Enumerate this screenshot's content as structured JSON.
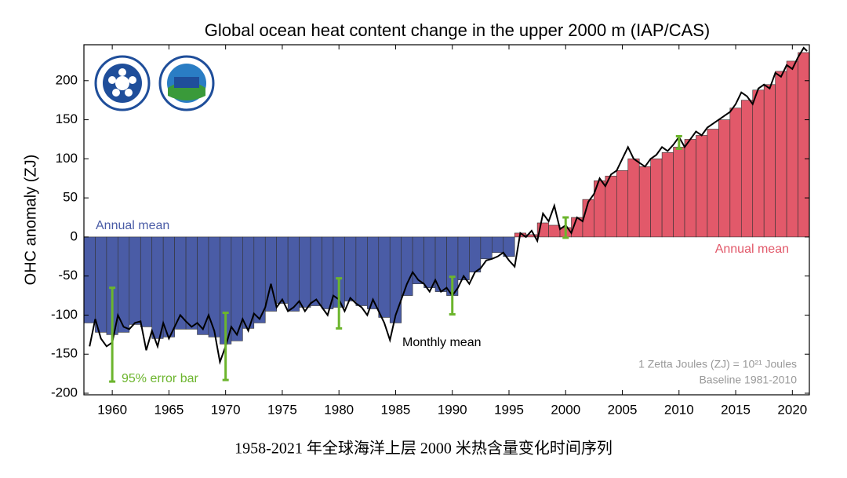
{
  "chart_data": {
    "type": "bar",
    "title": "Global ocean heat content change in the upper 2000 m (IAP/CAS)",
    "ylabel": "OHC anomaly (ZJ)",
    "x": [
      1958,
      1959,
      1960,
      1961,
      1962,
      1963,
      1964,
      1965,
      1966,
      1967,
      1968,
      1969,
      1970,
      1971,
      1972,
      1973,
      1974,
      1975,
      1976,
      1977,
      1978,
      1979,
      1980,
      1981,
      1982,
      1983,
      1984,
      1985,
      1986,
      1987,
      1988,
      1989,
      1990,
      1991,
      1992,
      1993,
      1994,
      1995,
      1996,
      1997,
      1998,
      1999,
      2000,
      2001,
      2002,
      2003,
      2004,
      2005,
      2006,
      2007,
      2008,
      2009,
      2010,
      2011,
      2012,
      2013,
      2014,
      2015,
      2016,
      2017,
      2018,
      2019,
      2020,
      2021
    ],
    "values": [
      -110,
      -122,
      -125,
      -122,
      -112,
      -115,
      -130,
      -128,
      -118,
      -118,
      -125,
      -128,
      -137,
      -133,
      -117,
      -110,
      -95,
      -85,
      -95,
      -90,
      -88,
      -92,
      -90,
      -82,
      -88,
      -92,
      -103,
      -110,
      -75,
      -60,
      -65,
      -70,
      -75,
      -55,
      -45,
      -28,
      -20,
      -25,
      5,
      3,
      18,
      15,
      12,
      25,
      48,
      72,
      78,
      85,
      100,
      90,
      100,
      108,
      115,
      125,
      130,
      138,
      150,
      165,
      175,
      188,
      195,
      212,
      225,
      236
    ],
    "negative_color": "#4a5ca6",
    "positive_color": "#e2596a",
    "line": {
      "name": "Monthly mean",
      "color": "#000000",
      "x": [
        1958.0,
        1958.5,
        1959.0,
        1959.5,
        1960.0,
        1960.5,
        1961.0,
        1961.5,
        1962.0,
        1962.5,
        1963.0,
        1963.5,
        1964.0,
        1964.5,
        1965.0,
        1965.5,
        1966.0,
        1966.5,
        1967.0,
        1967.5,
        1968.0,
        1968.5,
        1969.0,
        1969.5,
        1970.0,
        1970.5,
        1971.0,
        1971.5,
        1972.0,
        1972.5,
        1973.0,
        1973.5,
        1974.0,
        1974.5,
        1975.0,
        1975.5,
        1976.0,
        1976.5,
        1977.0,
        1977.5,
        1978.0,
        1978.5,
        1979.0,
        1979.5,
        1980.0,
        1980.5,
        1981.0,
        1981.5,
        1982.0,
        1982.5,
        1983.0,
        1983.5,
        1984.0,
        1984.5,
        1985.0,
        1985.5,
        1986.0,
        1986.5,
        1987.0,
        1987.5,
        1988.0,
        1988.5,
        1989.0,
        1989.5,
        1990.0,
        1990.5,
        1991.0,
        1991.5,
        1992.0,
        1992.5,
        1993.0,
        1993.5,
        1994.0,
        1994.5,
        1995.0,
        1995.5,
        1996.0,
        1996.5,
        1997.0,
        1997.5,
        1998.0,
        1998.5,
        1999.0,
        1999.5,
        2000.0,
        2000.5,
        2001.0,
        2001.5,
        2002.0,
        2002.5,
        2003.0,
        2003.5,
        2004.0,
        2004.5,
        2005.0,
        2005.5,
        2006.0,
        2006.5,
        2007.0,
        2007.5,
        2008.0,
        2008.5,
        2009.0,
        2009.5,
        2010.0,
        2010.5,
        2011.0,
        2011.5,
        2012.0,
        2012.5,
        2013.0,
        2013.5,
        2014.0,
        2014.5,
        2015.0,
        2015.5,
        2016.0,
        2016.5,
        2017.0,
        2017.5,
        2018.0,
        2018.5,
        2019.0,
        2019.5,
        2020.0,
        2020.5,
        2021.0,
        2021.3
      ],
      "values": [
        -140,
        -105,
        -130,
        -140,
        -135,
        -100,
        -115,
        -118,
        -110,
        -108,
        -145,
        -120,
        -140,
        -110,
        -130,
        -115,
        -100,
        -108,
        -115,
        -110,
        -118,
        -100,
        -120,
        -160,
        -140,
        -115,
        -125,
        -105,
        -120,
        -98,
        -105,
        -90,
        -60,
        -90,
        -80,
        -95,
        -90,
        -82,
        -95,
        -85,
        -80,
        -90,
        -100,
        -75,
        -80,
        -95,
        -78,
        -85,
        -90,
        -100,
        -80,
        -95,
        -110,
        -132,
        -100,
        -80,
        -60,
        -45,
        -55,
        -60,
        -70,
        -55,
        -70,
        -65,
        -75,
        -65,
        -50,
        -60,
        -45,
        -40,
        -30,
        -28,
        -25,
        -20,
        -30,
        -38,
        5,
        0,
        8,
        -5,
        30,
        20,
        40,
        10,
        15,
        5,
        25,
        20,
        45,
        55,
        75,
        65,
        80,
        85,
        100,
        115,
        100,
        95,
        90,
        100,
        105,
        115,
        110,
        118,
        128,
        115,
        125,
        135,
        130,
        140,
        145,
        150,
        155,
        160,
        170,
        185,
        180,
        170,
        190,
        195,
        190,
        210,
        205,
        220,
        215,
        230,
        242,
        238
      ]
    },
    "error_bars": {
      "color": "#6cb52d",
      "x": [
        1960,
        1970,
        1980,
        1990,
        2000,
        2010
      ],
      "values": [
        -125,
        -140,
        -85,
        -75,
        12,
        121
      ],
      "errors": [
        60,
        43,
        32,
        24,
        13,
        8
      ]
    },
    "annotations": {
      "annual_negative": "Annual mean",
      "annual_positive": "Annual mean",
      "monthly": "Monthly mean",
      "error": "95% error bar",
      "unit": "1 Zetta Joules (ZJ) = 10²¹ Joules",
      "baseline": "Baseline 1981-2010"
    },
    "xlim": [
      1957.5,
      2021.5
    ],
    "ylim": [
      -202,
      246
    ],
    "xticks": [
      1960,
      1965,
      1970,
      1975,
      1980,
      1985,
      1990,
      1995,
      2000,
      2005,
      2010,
      2015,
      2020
    ],
    "yticks": [
      -200,
      -150,
      -100,
      -50,
      0,
      50,
      100,
      150,
      200
    ]
  },
  "caption": "1958-2021 年全球海洋上层 2000 米热含量变化时间序列"
}
